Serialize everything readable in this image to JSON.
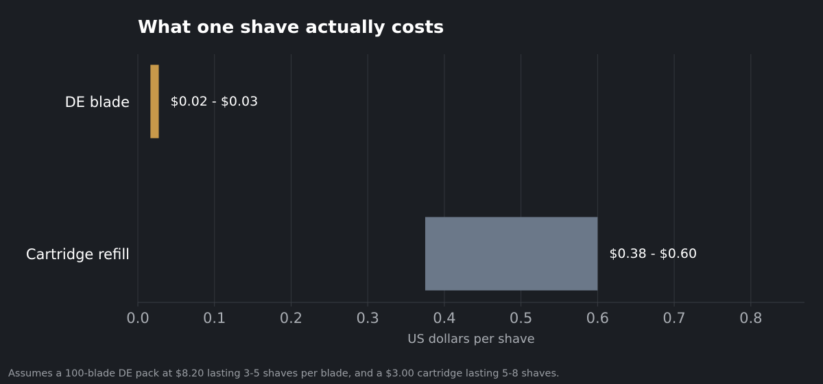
{
  "chart_data": {
    "type": "bar",
    "orientation": "horizontal",
    "range_bars": true,
    "title": "What one shave actually costs",
    "xlabel": "US dollars per shave",
    "ylabel": "",
    "xlim": [
      0,
      0.87
    ],
    "xticks": [
      0.0,
      0.1,
      0.2,
      0.3,
      0.4,
      0.5,
      0.6,
      0.7,
      0.8
    ],
    "xtick_labels": [
      "0.0",
      "0.1",
      "0.2",
      "0.3",
      "0.4",
      "0.5",
      "0.6",
      "0.7",
      "0.8"
    ],
    "grid": "vertical",
    "categories": [
      "DE blade",
      "Cartridge refill"
    ],
    "bars": [
      {
        "category": "DE blade",
        "low": 0.0164,
        "high": 0.0273,
        "label": "$0.02 - $0.03",
        "color": "#c8994a"
      },
      {
        "category": "Cartridge refill",
        "low": 0.375,
        "high": 0.6,
        "label": "$0.38 - $0.60",
        "color": "#6b7889"
      }
    ],
    "footnote": "Assumes a 100-blade DE pack at $8.20 lasting 3-5 shaves per blade, and a $3.00 cartridge lasting 5-8 shaves."
  },
  "colors": {
    "background": "#1b1e23",
    "grid": "#33373d",
    "text": "#ffffff",
    "muted_text": "#a9adb3"
  }
}
